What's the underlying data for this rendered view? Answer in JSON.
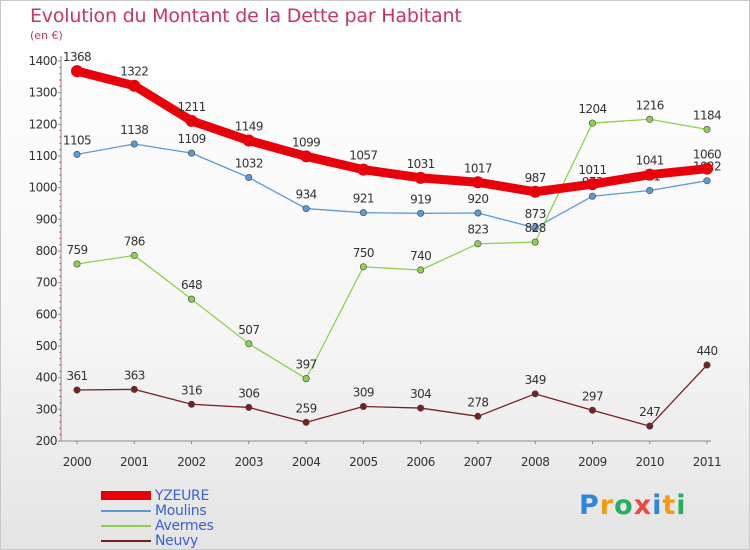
{
  "title": "Evolution du Montant de la Dette par Habitant",
  "subtitle": "(en €)",
  "chart_data": {
    "type": "line",
    "x": [
      "2000",
      "2001",
      "2002",
      "2003",
      "2004",
      "2005",
      "2006",
      "2007",
      "2008",
      "2009",
      "2010",
      "2011"
    ],
    "ylim": [
      200,
      1400
    ],
    "yticks": [
      200,
      300,
      400,
      500,
      600,
      700,
      800,
      900,
      1000,
      1100,
      1200,
      1300,
      1400
    ],
    "grid": false,
    "legend_position": "bottom-left",
    "series": [
      {
        "name": "YZEURE",
        "color": "#e8000b",
        "values": [
          1368,
          1322,
          1211,
          1149,
          1099,
          1057,
          1031,
          1017,
          987,
          1011,
          1041,
          1060
        ],
        "labels": [
          "1368",
          "1322",
          "1211",
          "1149",
          "1099",
          "1057",
          "1031",
          "1017",
          "987",
          "1011",
          "1041",
          "1060"
        ],
        "emphasis": true
      },
      {
        "name": "Moulins",
        "color": "#5b9bd5",
        "values": [
          1105,
          1138,
          1109,
          1032,
          934,
          921,
          919,
          920,
          873,
          973,
          991,
          1022
        ],
        "labels": [
          "1105",
          "1138",
          "1109",
          "1032",
          "934",
          "921",
          "919",
          "920",
          "873",
          "973",
          "991",
          "1022"
        ]
      },
      {
        "name": "Avermes",
        "color": "#8fd14f",
        "values": [
          759,
          786,
          648,
          507,
          397,
          750,
          740,
          823,
          828,
          1204,
          1216,
          1184
        ],
        "labels": [
          "759",
          "786",
          "648",
          "507",
          "397",
          "750",
          "740",
          "823",
          "828",
          "1204",
          "1216",
          "1184"
        ]
      },
      {
        "name": "Neuvy",
        "color": "#7b2020",
        "values": [
          361,
          363,
          316,
          306,
          259,
          309,
          304,
          278,
          349,
          297,
          247,
          440
        ],
        "labels": [
          "361",
          "363",
          "316",
          "306",
          "259",
          "309",
          "304",
          "278",
          "349",
          "297",
          "247",
          "440"
        ]
      }
    ]
  },
  "logo": {
    "letters": [
      "P",
      "r",
      "o",
      "x",
      "i",
      "t",
      "i"
    ],
    "colors": [
      "#2e86de",
      "#f39c12",
      "#27ae60",
      "#e74c3c",
      "#2e86de",
      "#f39c12",
      "#27ae60"
    ]
  }
}
